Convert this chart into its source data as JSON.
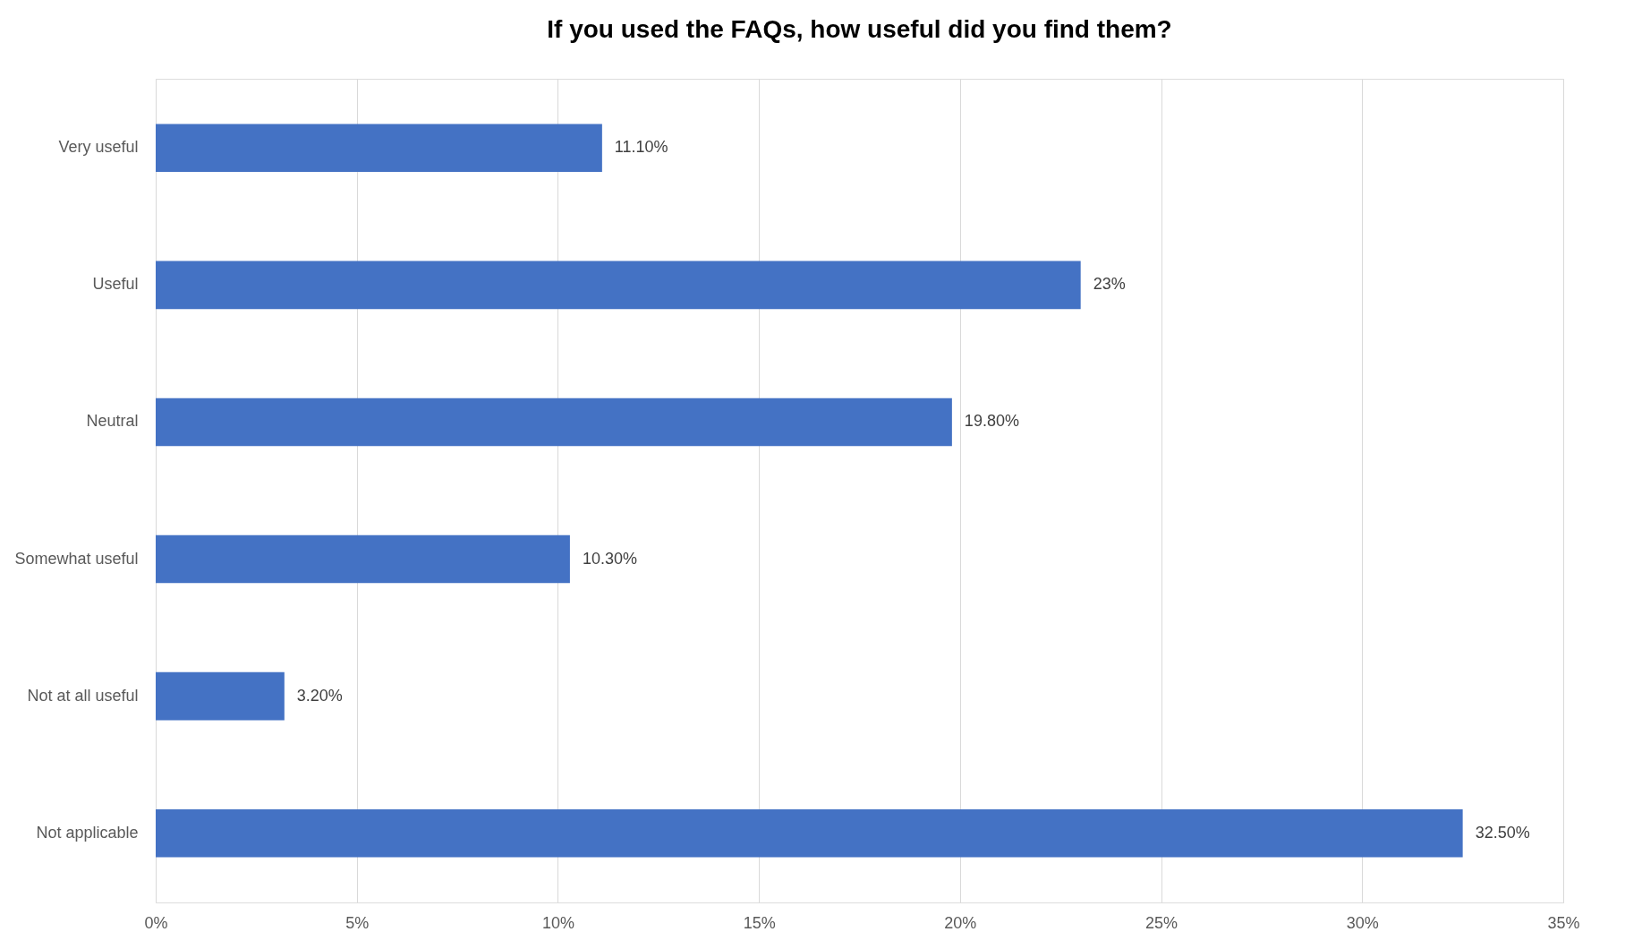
{
  "chart_data": {
    "type": "bar",
    "orientation": "horizontal",
    "title": "If you used the FAQs, how useful did you find them?",
    "categories": [
      "Very useful",
      "Useful",
      "Neutral",
      "Somewhat useful",
      "Not at all useful",
      "Not applicable"
    ],
    "values": [
      11.1,
      23,
      19.8,
      10.3,
      3.2,
      32.5
    ],
    "value_labels": [
      "11.10%",
      "23%",
      "19.80%",
      "10.30%",
      "3.20%",
      "32.50%"
    ],
    "color": "#4472c4",
    "xlim": [
      0,
      35
    ],
    "xticks": [
      {
        "value": 0,
        "label": "0%"
      },
      {
        "value": 5,
        "label": "5%"
      },
      {
        "value": 10,
        "label": "10%"
      },
      {
        "value": 15,
        "label": "15%"
      },
      {
        "value": 20,
        "label": "20%"
      },
      {
        "value": 25,
        "label": "25%"
      },
      {
        "value": 30,
        "label": "30%"
      },
      {
        "value": 35,
        "label": "35%"
      }
    ],
    "grid": "x"
  }
}
